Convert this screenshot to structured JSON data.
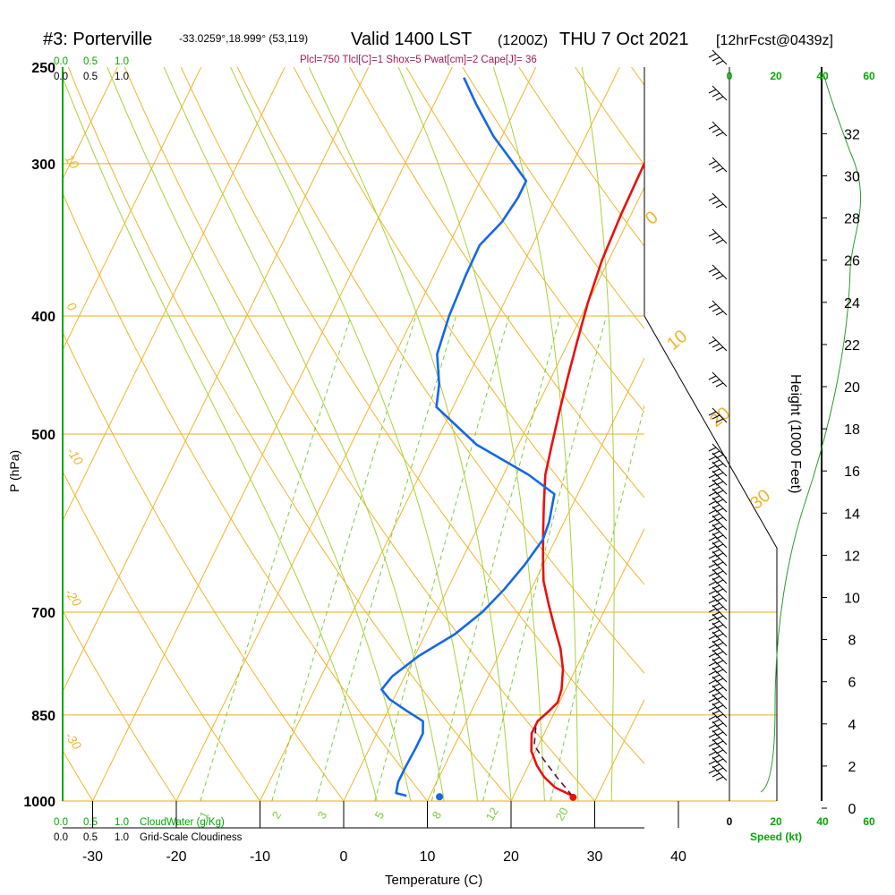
{
  "header": {
    "station": "#3: Porterville",
    "coords": "-33.0259°,18.999° (53,119)",
    "valid": "Valid 1400 LST",
    "zulu": "(1200Z)",
    "date": "THU 7 Oct 2021",
    "forecast": "[12hrFcst@0439z]",
    "indices": "Plcl=750 Tlcl[C]=1 Shox=5 Pwat[cm]=2 Cape[J]= 36"
  },
  "chart_data": {
    "type": "line",
    "title": "#3: Porterville",
    "xlabel": "Temperature (C)",
    "ylabel": "P (hPa)",
    "right_ylabel": "Height (1000 Feet)",
    "x_ticks": [
      "-30",
      "-20",
      "-10",
      "0",
      "10",
      "20",
      "30",
      "40"
    ],
    "pressure_levels": [
      {
        "p": 250,
        "label": "250"
      },
      {
        "p": 300,
        "label": "300"
      },
      {
        "p": 400,
        "label": "400"
      },
      {
        "p": 500,
        "label": "500"
      },
      {
        "p": 700,
        "label": "700"
      },
      {
        "p": 850,
        "label": "850"
      },
      {
        "p": 1000,
        "label": "1000"
      }
    ],
    "height_ticks": [
      "0",
      "2",
      "4",
      "6",
      "8",
      "10",
      "12",
      "14",
      "16",
      "18",
      "20",
      "22",
      "24",
      "26",
      "28",
      "30",
      "32"
    ],
    "cloud_scale_top_green": [
      "0.0",
      "0.5",
      "1.0"
    ],
    "cloud_scale_top_black": [
      "0.0",
      "0.5",
      "1.0"
    ],
    "cloud_scale_bottom_green": [
      "0.0",
      "0.5",
      "1.0"
    ],
    "cloud_scale_bottom_black": [
      "0.0",
      "0.5",
      "1.0"
    ],
    "cloudwater_label": "CloudWater (g/Kg)",
    "cloudiness_label": "Grid-Scale Cloudiness",
    "speed_ticks": [
      "0",
      "20",
      "40",
      "60"
    ],
    "speed_label": "Speed (kt)",
    "dry_adiabat_labels": [
      "10",
      "0",
      "-10",
      "-20",
      "-30"
    ],
    "moist_adiabat_labels": [
      "0",
      "10",
      "20",
      "30"
    ],
    "mixing_ratio_labels": [
      "1",
      "2",
      "3",
      "5",
      "8",
      "12",
      "20"
    ],
    "series": [
      {
        "name": "temperature",
        "color": "#e8110f",
        "points": [
          [
            27.0,
            990
          ],
          [
            24.5,
            975
          ],
          [
            22.5,
            955
          ],
          [
            21.0,
            935
          ],
          [
            19.5,
            910
          ],
          [
            18.5,
            880
          ],
          [
            18.5,
            860
          ],
          [
            19.2,
            845
          ],
          [
            19.8,
            830
          ],
          [
            19.5,
            810
          ],
          [
            18.5,
            780
          ],
          [
            17.0,
            750
          ],
          [
            15.0,
            720
          ],
          [
            13.0,
            690
          ],
          [
            11.0,
            660
          ],
          [
            9.5,
            630
          ],
          [
            8.0,
            600
          ],
          [
            6.5,
            570
          ],
          [
            5.0,
            540
          ],
          [
            4.0,
            510
          ],
          [
            3.0,
            480
          ],
          [
            2.0,
            450
          ],
          [
            1.0,
            420
          ],
          [
            0.0,
            390
          ],
          [
            -0.8,
            360
          ],
          [
            -1.2,
            330
          ],
          [
            -1.4,
            300
          ],
          [
            -0.8,
            280
          ],
          [
            0.8,
            265
          ],
          [
            2.8,
            254
          ]
        ]
      },
      {
        "name": "dewpoint",
        "color": "#1468e6",
        "points": [
          [
            7.2,
            990
          ],
          [
            5.8,
            985
          ],
          [
            5.4,
            965
          ],
          [
            5.4,
            935
          ],
          [
            5.5,
            905
          ],
          [
            5.5,
            880
          ],
          [
            4.8,
            860
          ],
          [
            2.5,
            845
          ],
          [
            -0.5,
            825
          ],
          [
            -2.0,
            810
          ],
          [
            -1.5,
            790
          ],
          [
            0.5,
            760
          ],
          [
            3.5,
            730
          ],
          [
            5.5,
            700
          ],
          [
            6.8,
            670
          ],
          [
            7.8,
            640
          ],
          [
            8.5,
            610
          ],
          [
            8.2,
            590
          ],
          [
            7.2,
            560
          ],
          [
            3.0,
            540
          ],
          [
            -5.0,
            510
          ],
          [
            -12.0,
            475
          ],
          [
            -13.0,
            455
          ],
          [
            -15.0,
            430
          ],
          [
            -15.8,
            400
          ],
          [
            -16.2,
            370
          ],
          [
            -16.3,
            350
          ],
          [
            -15.0,
            335
          ],
          [
            -14.5,
            320
          ],
          [
            -14.5,
            310
          ],
          [
            -17.0,
            300
          ],
          [
            -21.0,
            285
          ],
          [
            -25.0,
            268
          ],
          [
            -28.0,
            255
          ]
        ]
      },
      {
        "name": "parcel",
        "color": "#5a1048",
        "points": [
          [
            27.0,
            990
          ],
          [
            24.0,
            955
          ],
          [
            21.5,
            925
          ],
          [
            19.5,
            900
          ],
          [
            18.5,
            865
          ]
        ]
      }
    ],
    "surface_temperature": [
      27.2,
      993
    ],
    "surface_dewpoint": [
      11.2,
      992
    ],
    "colors": {
      "isobar": "#e8b010",
      "dry_adiabat": "#f0b42a",
      "moist_adiabat": "#a8d23c",
      "mixing_ratio": "#7ccd3c",
      "green_text": "#00aa00",
      "indices_text": "#a01a5a"
    }
  }
}
